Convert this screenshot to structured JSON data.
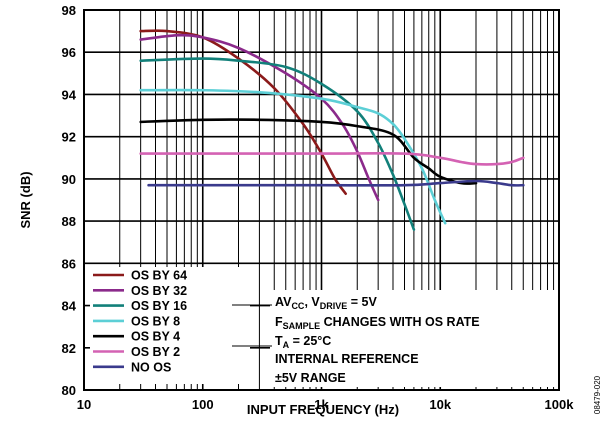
{
  "chart_data": {
    "type": "line",
    "xlabel": "INPUT FREQUENCY (Hz)",
    "ylabel": "SNR (dB)",
    "xscale": "log",
    "xlim": [
      10,
      100000
    ],
    "ylim": [
      80,
      98
    ],
    "x_tick_labels": [
      "10",
      "100",
      "1k",
      "10k",
      "100k"
    ],
    "y_ticks": [
      80,
      82,
      84,
      86,
      88,
      90,
      92,
      94,
      96,
      98
    ],
    "grid": true,
    "legend_position": "bottom-left",
    "annotation_lines": [
      "AVCC, VDRIVE = 5V",
      "FSAMPLE CHANGES WITH OS RATE",
      "TA = 25°C",
      "INTERNAL REFERENCE",
      "±5V RANGE"
    ],
    "annotation_parts": {
      "line1_a": "AV",
      "line1_b": "CC",
      "line1_c": ", V",
      "line1_d": "DRIVE",
      "line1_e": " = 5V",
      "line2_a": "F",
      "line2_b": "SAMPLE",
      "line2_c": " CHANGES WITH OS RATE",
      "line3_a": "T",
      "line3_b": "A",
      "line3_c": " = 25°C",
      "line4": "INTERNAL REFERENCE",
      "line5": "±5V RANGE"
    },
    "figure_id": "08479-020",
    "series": [
      {
        "name": "OS BY 64",
        "color": "#8b1a1a",
        "points": [
          [
            30,
            97.0
          ],
          [
            50,
            97.0
          ],
          [
            100,
            96.7
          ],
          [
            200,
            95.7
          ],
          [
            400,
            94.3
          ],
          [
            700,
            92.6
          ],
          [
            1000,
            91.2
          ],
          [
            1300,
            90.0
          ],
          [
            1600,
            89.3
          ]
        ]
      },
      {
        "name": "OS BY 32",
        "color": "#8b2a8b",
        "points": [
          [
            30,
            96.6
          ],
          [
            60,
            96.8
          ],
          [
            100,
            96.7
          ],
          [
            200,
            96.2
          ],
          [
            500,
            95.0
          ],
          [
            1000,
            93.8
          ],
          [
            1500,
            92.6
          ],
          [
            2000,
            91.3
          ],
          [
            2500,
            90.0
          ],
          [
            3000,
            89.0
          ]
        ]
      },
      {
        "name": "OS BY 16",
        "color": "#12807a",
        "points": [
          [
            30,
            95.6
          ],
          [
            100,
            95.7
          ],
          [
            200,
            95.6
          ],
          [
            500,
            95.3
          ],
          [
            1000,
            94.5
          ],
          [
            2000,
            93.2
          ],
          [
            3000,
            91.7
          ],
          [
            4000,
            90.2
          ],
          [
            5000,
            88.8
          ],
          [
            6000,
            87.6
          ]
        ]
      },
      {
        "name": "OS BY 8",
        "color": "#5ccfd6",
        "points": [
          [
            30,
            94.2
          ],
          [
            100,
            94.2
          ],
          [
            300,
            94.1
          ],
          [
            1000,
            93.8
          ],
          [
            2000,
            93.4
          ],
          [
            3000,
            93.1
          ],
          [
            4000,
            92.6
          ],
          [
            5000,
            91.9
          ],
          [
            7000,
            90.5
          ],
          [
            9000,
            89.0
          ],
          [
            11000,
            87.9
          ]
        ]
      },
      {
        "name": "OS BY 4",
        "color": "#000000",
        "points": [
          [
            30,
            92.7
          ],
          [
            100,
            92.8
          ],
          [
            300,
            92.8
          ],
          [
            1000,
            92.7
          ],
          [
            2000,
            92.5
          ],
          [
            4000,
            92.1
          ],
          [
            6000,
            91.0
          ],
          [
            8000,
            90.5
          ],
          [
            10000,
            90.1
          ],
          [
            15000,
            89.8
          ],
          [
            20000,
            89.8
          ]
        ]
      },
      {
        "name": "OS BY 2",
        "color": "#d462b3",
        "points": [
          [
            30,
            91.2
          ],
          [
            100,
            91.2
          ],
          [
            1000,
            91.2
          ],
          [
            5000,
            91.2
          ],
          [
            10000,
            91.0
          ],
          [
            15000,
            90.8
          ],
          [
            20000,
            90.7
          ],
          [
            30000,
            90.7
          ],
          [
            40000,
            90.8
          ],
          [
            50000,
            91.0
          ]
        ]
      },
      {
        "name": "NO OS",
        "color": "#3a3a8c",
        "points": [
          [
            35,
            89.7
          ],
          [
            100,
            89.7
          ],
          [
            1000,
            89.7
          ],
          [
            5000,
            89.7
          ],
          [
            10000,
            89.8
          ],
          [
            20000,
            89.9
          ],
          [
            30000,
            89.8
          ],
          [
            40000,
            89.7
          ],
          [
            50000,
            89.7
          ]
        ]
      }
    ]
  }
}
